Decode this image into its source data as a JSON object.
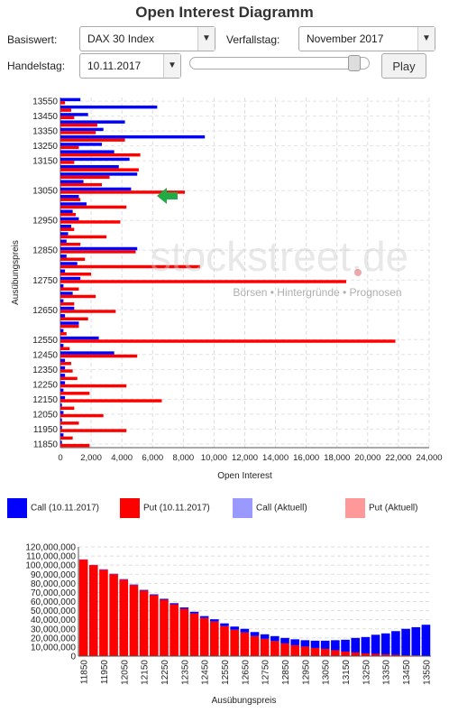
{
  "title": "Open Interest Diagramm",
  "controls": {
    "basiswert_label": "Basiswert:",
    "basiswert_value": "DAX 30 Index",
    "verfallstag_label": "Verfallstag:",
    "verfallstag_value": "November 2017",
    "handelstag_label": "Handelstag:",
    "handelstag_value": "10.11.2017",
    "play_label": "Play",
    "slider_position": 0.95
  },
  "watermark": {
    "brand": "stockstreet.de",
    "tagline": "Börsen • Hintergründe • Prognosen"
  },
  "legend": [
    {
      "label": "Call (10.11.2017)",
      "color": "#0000ff"
    },
    {
      "label": "Put (10.11.2017)",
      "color": "#ff0000"
    },
    {
      "label": "Call (Aktuell)",
      "color": "#9999ff"
    },
    {
      "label": "Put (Aktuell)",
      "color": "#ff9999"
    }
  ],
  "chart_data": [
    {
      "type": "bar",
      "orientation": "horizontal",
      "xlabel": "Open Interest",
      "ylabel": "Ausübungspreis",
      "xlim": [
        0,
        24000
      ],
      "xticks": [
        "0",
        "2,000",
        "4,000",
        "6,000",
        "8,000",
        "10,000",
        "12,000",
        "14,000",
        "16,000",
        "18,000",
        "20,000",
        "22,000",
        "24,000"
      ],
      "ytick_labels": [
        "13550",
        "13450",
        "13350",
        "13250",
        "13150",
        "13050",
        "12950",
        "12850",
        "12750",
        "12650",
        "12550",
        "12450",
        "12350",
        "12250",
        "12150",
        "12050",
        "11950",
        "11850"
      ],
      "grid": true,
      "categories": [
        13550,
        13500,
        13450,
        13400,
        13350,
        13300,
        13250,
        13200,
        13150,
        13125,
        13100,
        13075,
        13050,
        13025,
        13000,
        12975,
        12950,
        12925,
        12900,
        12875,
        12850,
        12825,
        12800,
        12775,
        12750,
        12725,
        12700,
        12675,
        12650,
        12625,
        12600,
        12575,
        12550,
        12500,
        12450,
        12400,
        12350,
        12300,
        12250,
        12200,
        12150,
        12100,
        12050,
        12000,
        11950,
        11900,
        11850
      ],
      "series": [
        {
          "name": "Call (10.11.2017)",
          "color": "#0000ff",
          "values": [
            1300,
            6300,
            1800,
            4200,
            2800,
            9400,
            2700,
            3500,
            4500,
            3800,
            5000,
            1500,
            4600,
            1200,
            1700,
            800,
            1200,
            700,
            500,
            400,
            5000,
            400,
            1100,
            300,
            1300,
            200,
            800,
            200,
            900,
            300,
            1200,
            200,
            2500,
            200,
            3500,
            300,
            300,
            300,
            300,
            200,
            300,
            100,
            200,
            100,
            100,
            200,
            100
          ]
        },
        {
          "name": "Put (10.11.2017)",
          "color": "#ff0000",
          "values": [
            300,
            700,
            900,
            2400,
            2300,
            4200,
            1200,
            5200,
            900,
            5100,
            3200,
            2700,
            8100,
            1300,
            4300,
            1000,
            3900,
            900,
            3000,
            1300,
            4900,
            1600,
            9100,
            2000,
            18600,
            1200,
            2300,
            900,
            3600,
            1800,
            1200,
            400,
            21800,
            600,
            5000,
            700,
            800,
            1100,
            4300,
            1900,
            6600,
            900,
            2800,
            1200,
            4300,
            800,
            1900
          ]
        }
      ]
    },
    {
      "type": "bar",
      "stacked": true,
      "xlabel": "Ausübungspreis",
      "ylabel": "",
      "ylim": [
        0,
        120000000
      ],
      "yticks": [
        "0",
        "10,000,000",
        "20,000,000",
        "30,000,000",
        "40,000,000",
        "50,000,000",
        "60,000,000",
        "70,000,000",
        "80,000,000",
        "90,000,000",
        "100,000,000",
        "110,000,000",
        "120,000,000"
      ],
      "xtick_labels": [
        "11850",
        "11950",
        "12050",
        "12150",
        "12250",
        "12350",
        "12450",
        "12550",
        "12650",
        "12750",
        "12850",
        "12950",
        "13050",
        "13150",
        "13250",
        "13350",
        "13450",
        "13550"
      ],
      "grid": true,
      "categories": [
        11850,
        11900,
        11950,
        12000,
        12050,
        12100,
        12150,
        12200,
        12250,
        12300,
        12350,
        12400,
        12450,
        12500,
        12550,
        12600,
        12650,
        12700,
        12750,
        12800,
        12850,
        12900,
        12950,
        13000,
        13050,
        13100,
        13150,
        13200,
        13250,
        13300,
        13350,
        13400,
        13450,
        13500,
        13550
      ],
      "series": [
        {
          "name": "Put",
          "color": "#ff0000",
          "values": [
            106000000,
            100000000,
            95000000,
            90000000,
            84000000,
            78000000,
            72000000,
            67000000,
            62000000,
            57000000,
            52000000,
            47000000,
            42000000,
            38000000,
            33000000,
            29000000,
            26000000,
            22000000,
            19000000,
            16500000,
            14000000,
            12000000,
            10500000,
            9000000,
            8000000,
            6500000,
            5000000,
            4000000,
            3000000,
            2500000,
            2000000,
            1500000,
            1000000,
            800000,
            500000
          ]
        },
        {
          "name": "Call",
          "color": "#0000ff",
          "values": [
            300000,
            300000,
            400000,
            500000,
            600000,
            700000,
            800000,
            900000,
            1000000,
            1200000,
            1500000,
            1800000,
            2000000,
            2500000,
            3000000,
            3500000,
            4000000,
            4500000,
            5000000,
            5500000,
            6000000,
            6500000,
            7000000,
            8000000,
            9000000,
            11000000,
            13000000,
            16000000,
            18000000,
            21000000,
            23000000,
            26000000,
            29000000,
            31000000,
            34000000
          ]
        }
      ]
    }
  ]
}
